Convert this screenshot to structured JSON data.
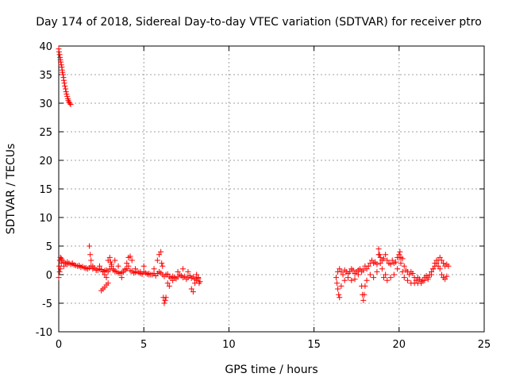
{
  "chart_data": {
    "type": "scatter",
    "title": "Day 174 of 2018, Sidereal Day-to-day VTEC variation (SDTVAR) for receiver ptro",
    "xlabel": "GPS time / hours",
    "ylabel": "SDTVAR / TECUs",
    "xlim": [
      0,
      25
    ],
    "ylim": [
      -10,
      40
    ],
    "xticks": [
      0,
      5,
      10,
      15,
      20,
      25
    ],
    "yticks": [
      -10,
      -5,
      0,
      5,
      10,
      15,
      20,
      25,
      30,
      35,
      40
    ],
    "xtick_labels": [
      "0",
      "5",
      "10",
      "15",
      "20",
      "25"
    ],
    "ytick_labels": [
      "-10",
      "-5",
      "0",
      "5",
      "10",
      "15",
      "20",
      "25",
      "30",
      "35",
      "40"
    ],
    "grid": true,
    "marker": "+",
    "color": "#ff0000",
    "series": [
      {
        "name": "SDTVAR",
        "x": [
          0.0,
          0.02,
          0.05,
          0.08,
          0.1,
          0.12,
          0.15,
          0.18,
          0.2,
          0.22,
          0.25,
          0.28,
          0.3,
          0.33,
          0.36,
          0.4,
          0.43,
          0.46,
          0.5,
          0.53,
          0.56,
          0.6,
          0.65,
          0.7,
          0.0,
          0.03,
          0.06,
          0.1,
          0.15,
          0.2,
          0.3,
          0.4,
          0.5,
          0.6,
          0.7,
          0.8,
          0.9,
          1.0,
          1.1,
          1.2,
          1.3,
          1.4,
          1.5,
          1.6,
          1.7,
          1.8,
          1.9,
          2.0,
          2.1,
          2.2,
          2.3,
          2.4,
          2.5,
          2.6,
          2.7,
          2.8,
          2.9,
          3.0,
          3.1,
          3.2,
          3.3,
          3.4,
          3.5,
          3.6,
          3.7,
          3.8,
          3.9,
          4.0,
          4.1,
          4.2,
          4.3,
          4.4,
          4.5,
          4.6,
          4.7,
          4.8,
          4.9,
          5.0,
          5.1,
          5.2,
          5.3,
          5.4,
          5.5,
          5.6,
          5.7,
          5.8,
          5.9,
          6.0,
          6.1,
          6.2,
          6.3,
          6.4,
          6.5,
          6.6,
          6.7,
          6.8,
          6.9,
          7.0,
          7.1,
          7.2,
          7.3,
          7.4,
          7.5,
          7.6,
          7.7,
          7.8,
          7.9,
          8.0,
          8.1,
          8.2,
          8.3,
          0.05,
          0.1,
          0.15,
          0.3,
          0.5,
          0.8,
          1.2,
          1.6,
          1.8,
          1.85,
          1.9,
          2.0,
          2.2,
          2.4,
          2.6,
          2.7,
          2.8,
          2.9,
          3.0,
          3.05,
          3.1,
          3.2,
          3.3,
          3.5,
          3.7,
          3.9,
          4.0,
          4.1,
          4.2,
          4.3,
          4.5,
          4.8,
          5.0,
          5.3,
          5.6,
          5.8,
          5.9,
          6.0,
          6.05,
          6.1,
          6.15,
          6.2,
          6.25,
          6.3,
          6.4,
          6.5,
          6.7,
          7.0,
          7.3,
          7.6,
          7.8,
          7.9,
          8.0,
          8.1,
          8.2,
          8.25,
          2.5,
          2.6,
          2.7,
          2.8,
          2.9,
          16.3,
          16.4,
          16.5,
          16.6,
          16.7,
          16.8,
          16.9,
          17.0,
          17.1,
          17.2,
          17.3,
          17.4,
          17.5,
          17.6,
          17.7,
          17.8,
          17.9,
          18.0,
          18.1,
          18.2,
          18.3,
          18.4,
          18.5,
          18.6,
          18.7,
          18.8,
          18.9,
          19.0,
          19.1,
          19.2,
          19.3,
          19.4,
          19.5,
          19.6,
          19.7,
          19.8,
          19.9,
          20.0,
          20.1,
          20.2,
          20.3,
          20.4,
          20.5,
          20.6,
          20.7,
          20.8,
          20.9,
          21.0,
          21.1,
          21.2,
          21.3,
          21.4,
          21.5,
          21.6,
          21.7,
          21.8,
          21.9,
          22.0,
          22.1,
          22.2,
          22.3,
          22.4,
          22.5,
          22.6,
          22.7,
          22.8,
          22.9,
          16.35,
          16.4,
          16.45,
          16.5,
          16.6,
          16.8,
          17.0,
          17.2,
          17.4,
          17.6,
          17.8,
          17.85,
          17.9,
          17.95,
          18.0,
          18.1,
          18.3,
          18.5,
          18.7,
          18.8,
          18.85,
          18.9,
          19.0,
          19.1,
          19.2,
          19.3,
          19.5,
          19.7,
          19.9,
          20.0,
          20.05,
          20.1,
          20.2,
          20.3,
          20.5,
          20.7,
          20.9,
          21.1,
          21.3,
          21.5,
          21.7,
          21.9,
          22.0,
          22.1,
          22.2,
          22.3,
          22.4,
          22.5,
          22.6,
          22.7,
          22.8
        ],
        "y": [
          39.5,
          39.0,
          38.5,
          38.0,
          37.6,
          37.2,
          36.7,
          36.3,
          35.8,
          35.4,
          35.0,
          34.5,
          34.0,
          33.5,
          33.0,
          32.5,
          32.0,
          31.6,
          31.2,
          30.8,
          30.5,
          30.2,
          30.0,
          29.8,
          -0.5,
          1.5,
          2.5,
          3.0,
          2.8,
          2.5,
          2.2,
          2.0,
          2.2,
          2.0,
          1.8,
          1.9,
          1.7,
          1.6,
          1.5,
          1.5,
          1.3,
          1.4,
          1.2,
          1.1,
          1.0,
          1.2,
          1.5,
          1.0,
          1.2,
          0.8,
          0.8,
          1.0,
          0.9,
          0.5,
          0.7,
          0.8,
          0.5,
          1.0,
          1.5,
          0.8,
          0.6,
          0.5,
          0.3,
          0.2,
          0.4,
          0.5,
          0.8,
          1.0,
          1.5,
          0.7,
          0.6,
          0.3,
          0.4,
          0.5,
          0.4,
          0.2,
          0.1,
          0.5,
          0.3,
          0.1,
          0.2,
          0.0,
          0.0,
          0.2,
          -0.2,
          0.2,
          0.5,
          0.3,
          0.0,
          -0.3,
          0.0,
          0.1,
          -0.4,
          -0.6,
          -0.3,
          -0.5,
          -0.7,
          -0.4,
          0.0,
          -0.2,
          -0.5,
          -0.3,
          -0.8,
          -0.5,
          -0.2,
          -0.6,
          -0.4,
          -0.8,
          -1.0,
          -0.6,
          -1.2,
          0.5,
          1.0,
          2.0,
          1.5,
          1.8,
          2.0,
          1.6,
          1.2,
          5.0,
          3.5,
          2.5,
          1.5,
          0.8,
          1.5,
          0.5,
          0.0,
          -0.5,
          2.5,
          3.0,
          2.2,
          1.8,
          1.0,
          2.5,
          1.5,
          -0.5,
          1.0,
          2.0,
          3.0,
          3.2,
          2.5,
          1.0,
          0.5,
          1.5,
          0.0,
          1.0,
          2.5,
          3.5,
          4.0,
          2.0,
          1.5,
          -4.0,
          -5.0,
          -4.5,
          -4.0,
          -1.5,
          -2.0,
          -1.0,
          0.5,
          1.0,
          0.5,
          -2.5,
          -3.0,
          -1.5,
          0.0,
          -0.5,
          -1.5,
          -2.8,
          -2.5,
          -2.2,
          -1.8,
          -1.5,
          -0.5,
          0.5,
          1.0,
          0.5,
          0.0,
          0.8,
          0.5,
          0.2,
          0.5,
          1.0,
          0.8,
          0.2,
          0.5,
          0.8,
          1.0,
          0.5,
          0.8,
          1.5,
          1.0,
          1.5,
          2.0,
          2.5,
          2.0,
          2.2,
          1.8,
          3.5,
          3.0,
          2.5,
          2.8,
          3.5,
          2.5,
          2.0,
          1.8,
          2.5,
          2.0,
          2.2,
          3.0,
          3.5,
          3.0,
          2.8,
          1.5,
          0.8,
          0.5,
          0.0,
          0.5,
          0.2,
          -0.5,
          -1.0,
          -0.5,
          -0.8,
          -1.5,
          -1.0,
          -0.5,
          -0.2,
          -0.5,
          0.0,
          0.5,
          1.0,
          1.5,
          2.0,
          2.5,
          3.0,
          2.5,
          2.0,
          1.5,
          1.8,
          1.5,
          -1.5,
          -2.5,
          -3.5,
          -4.0,
          -2.0,
          -1.0,
          -0.5,
          -1.0,
          -0.8,
          0.0,
          -2.0,
          -3.5,
          -4.5,
          -3.5,
          -2.0,
          -1.0,
          0.0,
          -0.5,
          0.5,
          4.5,
          3.5,
          2.0,
          1.0,
          -0.5,
          0.0,
          -1.0,
          -0.5,
          0.0,
          1.0,
          3.0,
          4.0,
          2.0,
          0.5,
          -0.5,
          -1.0,
          -1.5,
          -1.5,
          -1.5,
          -1.2,
          -1.0,
          -0.8,
          0.0,
          1.0,
          2.0,
          2.5,
          1.5,
          1.0,
          0.0,
          -0.5,
          -0.8,
          -0.3
        ]
      }
    ]
  }
}
